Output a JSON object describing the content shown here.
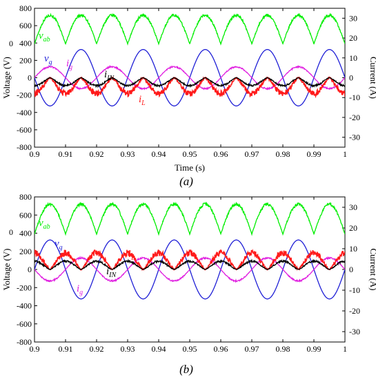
{
  "colors": {
    "v_ab": "#00ee00",
    "v_g": "#1f1fd6",
    "i_g": "#e020e0",
    "i_L": "#ff1a1a",
    "i_IN": "#000000"
  },
  "chart_data": [
    {
      "type": "line",
      "caption": "(a)",
      "xlabel": "Time (s)",
      "ylabel": "Voltage (V)",
      "y2label": "Current (A)",
      "xlim": [
        0.9,
        1.0
      ],
      "ylim": [
        -800,
        800
      ],
      "y2lim": [
        -35,
        35
      ],
      "xticks": [
        "0.9",
        "0.91",
        "0.92",
        "0.93",
        "0.94",
        "0.95",
        "0.96",
        "0.97",
        "0.98",
        "0.99",
        "1"
      ],
      "yticks": [
        "800",
        "600",
        "400",
        "200",
        "0",
        "-200",
        "-400",
        "-600",
        "-800"
      ],
      "y2ticks": [
        "30",
        "20",
        "10",
        "0",
        "-10",
        "-20",
        "-30"
      ],
      "grid": false,
      "frequency_hz": 50,
      "series": [
        {
          "key": "v_ab",
          "label": "v",
          "sub": "ab",
          "axis": "left",
          "shape": "rectified",
          "offset": 390,
          "amplitude": 330,
          "ripple": 12
        },
        {
          "key": "v_g",
          "label": "v",
          "sub": "g",
          "axis": "left",
          "shape": "sine",
          "amplitude": 325,
          "phase_sign": -1
        },
        {
          "key": "i_g",
          "label": "i",
          "sub": "g",
          "axis": "right",
          "shape": "sine",
          "amplitude": 5.5,
          "phase_sign": 1,
          "ripple": 0.4
        },
        {
          "key": "i_L",
          "label": "i",
          "sub": "L",
          "axis": "right",
          "shape": "notched",
          "amplitude": 8,
          "polarity": -1,
          "ripple": 1.3
        },
        {
          "key": "i_IN",
          "label": "i",
          "sub": "IN",
          "axis": "right",
          "shape": "notched",
          "amplitude": 4,
          "polarity": -1,
          "ripple": 0.4
        }
      ],
      "annotations": {
        "v_ab_zero": "0"
      }
    },
    {
      "type": "line",
      "caption": "(b)",
      "xlabel": "",
      "ylabel": "Voltage (V)",
      "y2label": "Current (A)",
      "xlim": [
        0.9,
        1.0
      ],
      "ylim": [
        -800,
        800
      ],
      "y2lim": [
        -35,
        35
      ],
      "xticks": [
        "0.9",
        "0.91",
        "0.92",
        "0.93",
        "0.94",
        "0.95",
        "0.96",
        "0.97",
        "0.98",
        "0.99",
        "1"
      ],
      "yticks": [
        "800",
        "600",
        "400",
        "200",
        "0",
        "-200",
        "-400",
        "-600",
        "-800"
      ],
      "y2ticks": [
        "30",
        "20",
        "10",
        "0",
        "-10",
        "-20",
        "-30"
      ],
      "grid": false,
      "frequency_hz": 50,
      "series": [
        {
          "key": "v_ab",
          "label": "v",
          "sub": "ab",
          "axis": "left",
          "shape": "rectified",
          "offset": 390,
          "amplitude": 330,
          "ripple": 12
        },
        {
          "key": "v_g",
          "label": "v",
          "sub": "g",
          "axis": "left",
          "shape": "sine",
          "amplitude": 325,
          "phase_sign": 1
        },
        {
          "key": "i_g",
          "label": "i",
          "sub": "g",
          "axis": "right",
          "shape": "sine",
          "amplitude": 5.5,
          "phase_sign": -1,
          "ripple": 0.4
        },
        {
          "key": "i_L",
          "label": "i",
          "sub": "L",
          "axis": "right",
          "shape": "notched",
          "amplitude": 8,
          "polarity": 1,
          "ripple": 1.3
        },
        {
          "key": "i_IN",
          "label": "i",
          "sub": "IN",
          "axis": "right",
          "shape": "notched",
          "amplitude": 4,
          "polarity": 1,
          "ripple": 0.4
        }
      ],
      "annotations": {
        "v_ab_zero": "0"
      }
    }
  ]
}
